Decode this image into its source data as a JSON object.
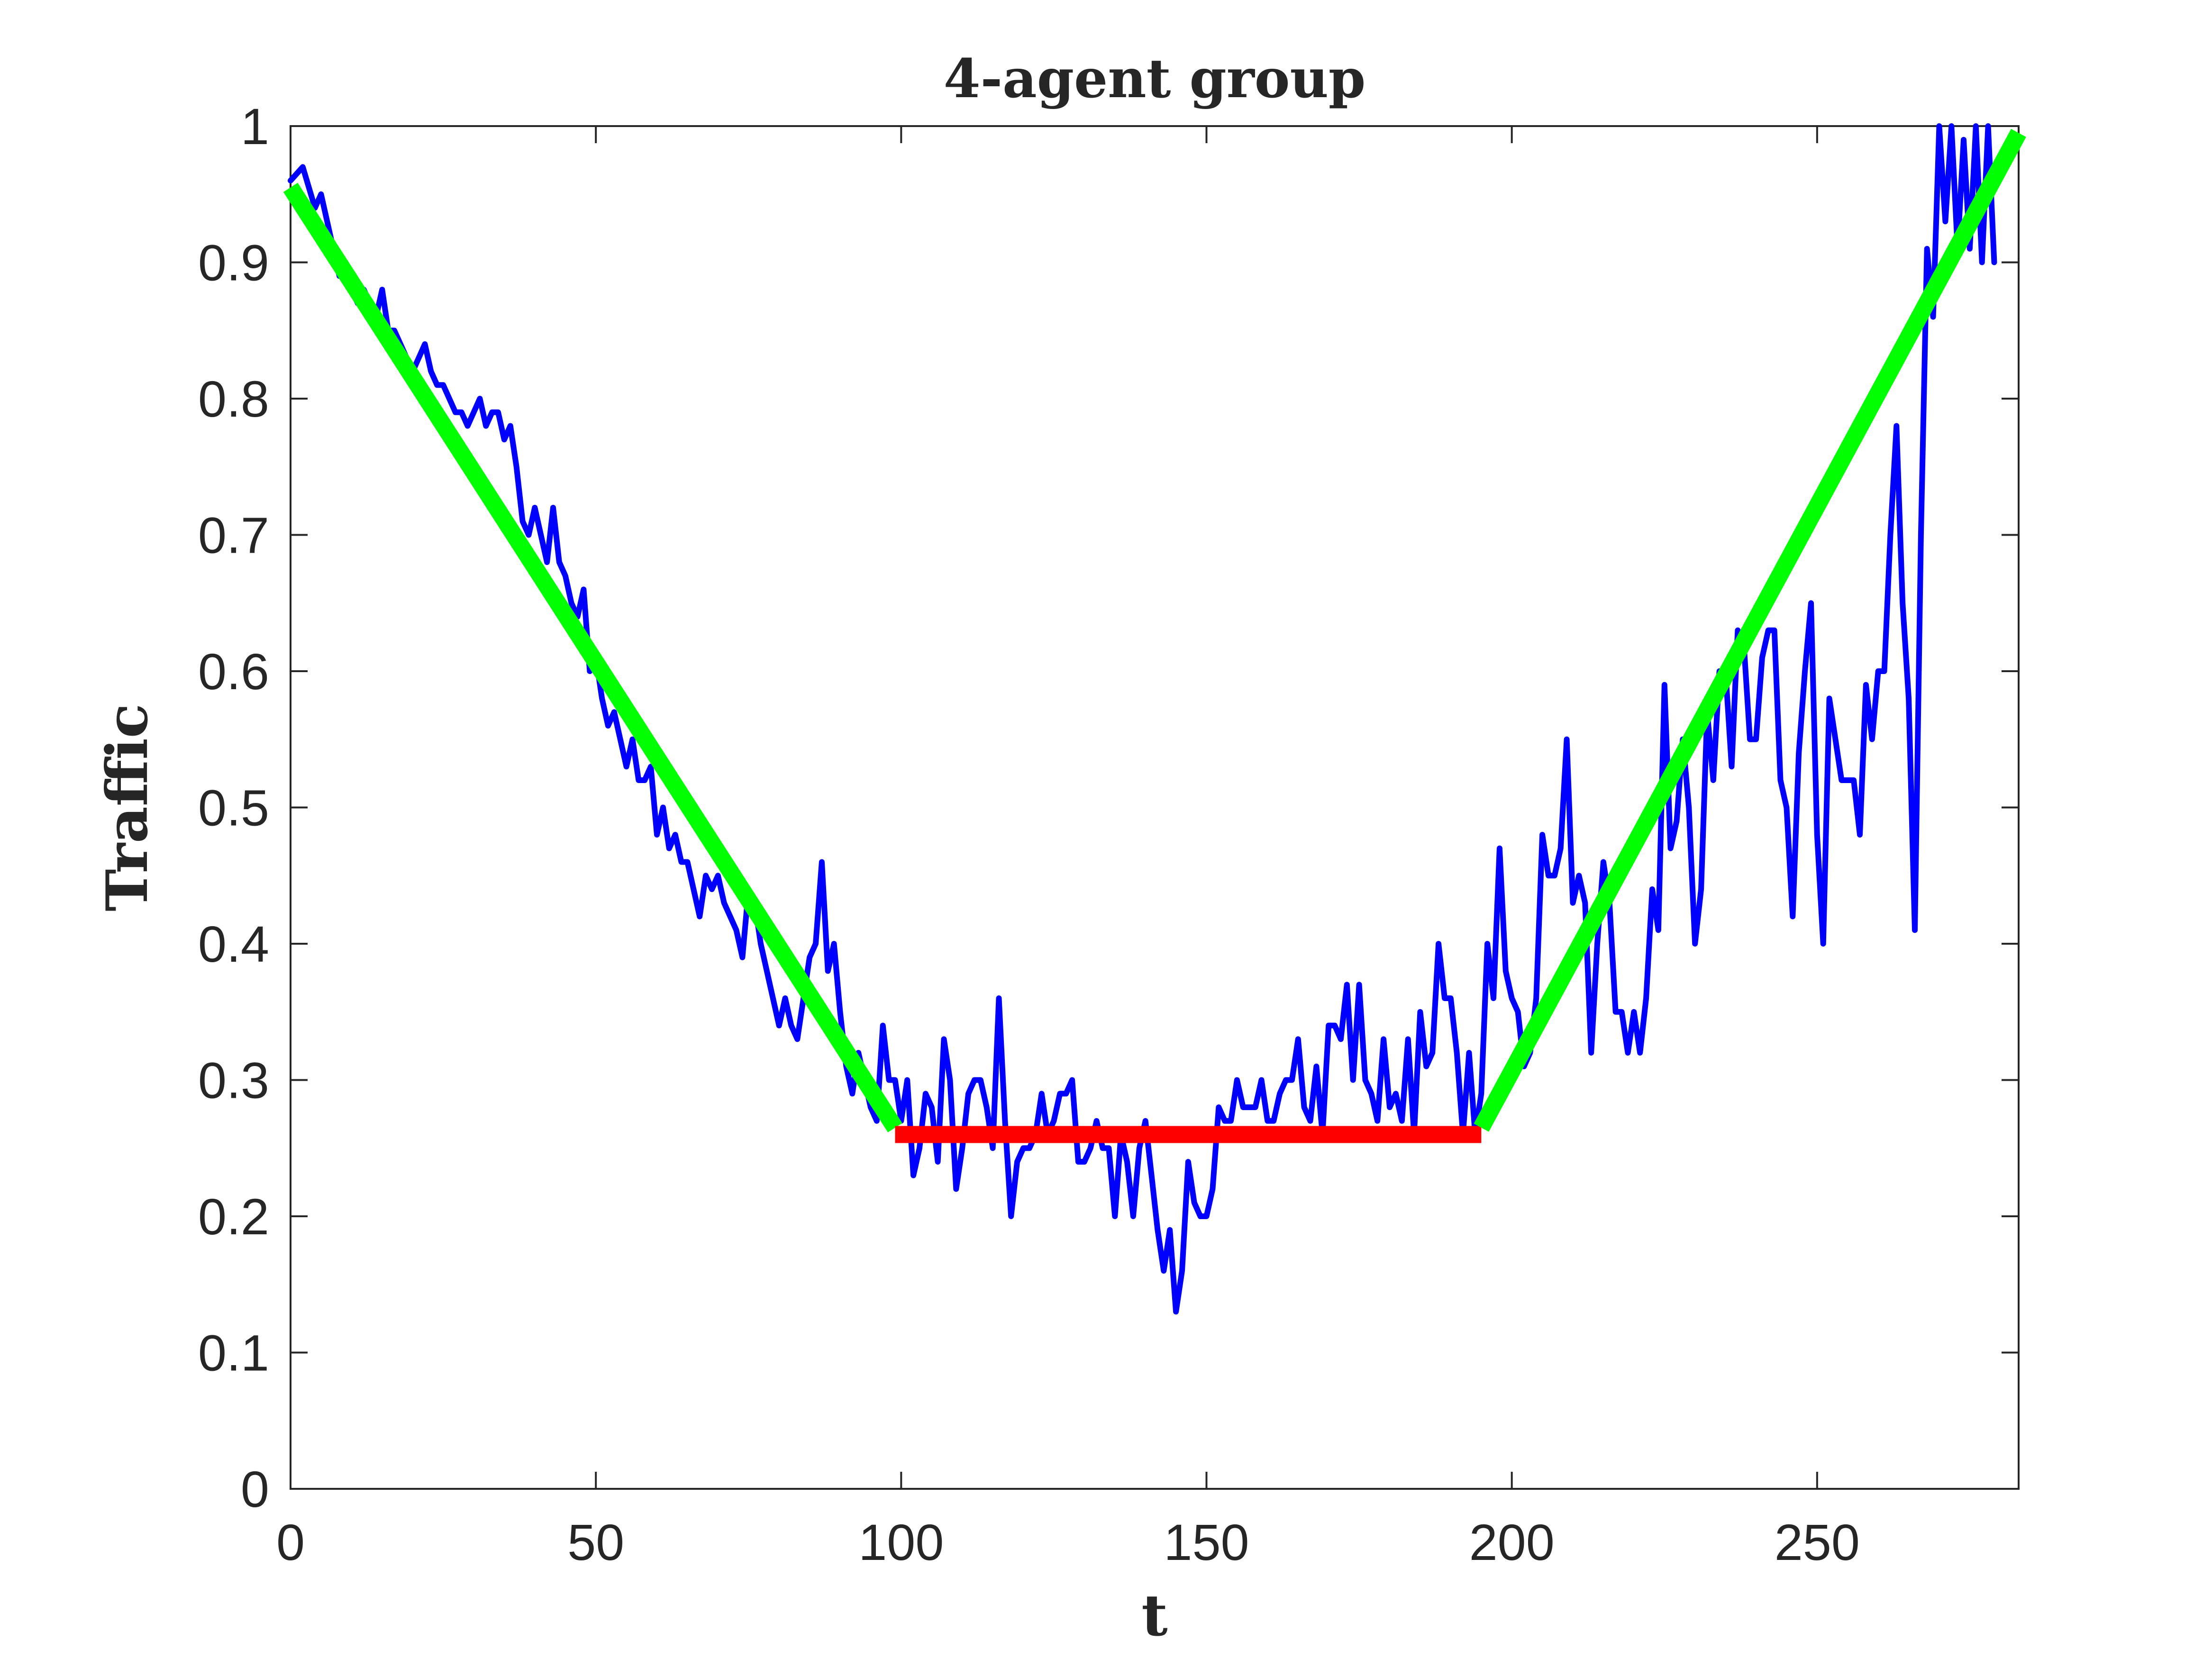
{
  "chart_data": {
    "type": "line",
    "title": "4-agent group",
    "xlabel": "t",
    "ylabel": "Traffic",
    "xlim": [
      0,
      283
    ],
    "ylim": [
      0,
      1
    ],
    "xticks": [
      0,
      50,
      100,
      150,
      200,
      250
    ],
    "yticks": [
      0,
      0.1,
      0.2,
      0.3,
      0.4,
      0.5,
      0.6,
      0.7,
      0.8,
      0.9,
      1
    ],
    "xtick_labels": [
      "0",
      "50",
      "100",
      "150",
      "200",
      "250"
    ],
    "ytick_labels": [
      "0",
      "0.1",
      "0.2",
      "0.3",
      "0.4",
      "0.5",
      "0.6",
      "0.7",
      "0.8",
      "0.9",
      "1"
    ],
    "grid": false,
    "series": [
      {
        "color": "#0000ff",
        "points": [
          [
            0,
            0.96
          ],
          [
            2,
            0.97
          ],
          [
            4,
            0.94
          ],
          [
            5,
            0.95
          ],
          [
            7,
            0.91
          ],
          [
            8,
            0.89
          ],
          [
            9,
            0.9
          ],
          [
            10,
            0.88
          ],
          [
            11,
            0.87
          ],
          [
            12,
            0.88
          ],
          [
            13,
            0.87
          ],
          [
            14,
            0.86
          ],
          [
            15,
            0.88
          ],
          [
            16,
            0.85
          ],
          [
            17,
            0.85
          ],
          [
            18,
            0.84
          ],
          [
            19,
            0.83
          ],
          [
            20,
            0.82
          ],
          [
            21,
            0.83
          ],
          [
            22,
            0.84
          ],
          [
            23,
            0.82
          ],
          [
            24,
            0.81
          ],
          [
            25,
            0.81
          ],
          [
            26,
            0.8
          ],
          [
            27,
            0.79
          ],
          [
            28,
            0.79
          ],
          [
            29,
            0.78
          ],
          [
            30,
            0.79
          ],
          [
            31,
            0.8
          ],
          [
            32,
            0.78
          ],
          [
            33,
            0.79
          ],
          [
            34,
            0.79
          ],
          [
            35,
            0.77
          ],
          [
            36,
            0.78
          ],
          [
            37,
            0.75
          ],
          [
            38,
            0.71
          ],
          [
            39,
            0.7
          ],
          [
            40,
            0.72
          ],
          [
            41,
            0.7
          ],
          [
            42,
            0.68
          ],
          [
            43,
            0.72
          ],
          [
            44,
            0.68
          ],
          [
            45,
            0.67
          ],
          [
            46,
            0.65
          ],
          [
            47,
            0.64
          ],
          [
            48,
            0.66
          ],
          [
            49,
            0.6
          ],
          [
            50,
            0.61
          ],
          [
            51,
            0.58
          ],
          [
            52,
            0.56
          ],
          [
            53,
            0.57
          ],
          [
            54,
            0.55
          ],
          [
            55,
            0.53
          ],
          [
            56,
            0.55
          ],
          [
            57,
            0.52
          ],
          [
            58,
            0.52
          ],
          [
            59,
            0.53
          ],
          [
            60,
            0.48
          ],
          [
            61,
            0.5
          ],
          [
            62,
            0.47
          ],
          [
            63,
            0.48
          ],
          [
            64,
            0.46
          ],
          [
            65,
            0.46
          ],
          [
            66,
            0.44
          ],
          [
            67,
            0.42
          ],
          [
            68,
            0.45
          ],
          [
            69,
            0.44
          ],
          [
            70,
            0.45
          ],
          [
            71,
            0.43
          ],
          [
            72,
            0.42
          ],
          [
            73,
            0.41
          ],
          [
            74,
            0.39
          ],
          [
            75,
            0.44
          ],
          [
            76,
            0.43
          ],
          [
            77,
            0.4
          ],
          [
            78,
            0.38
          ],
          [
            79,
            0.36
          ],
          [
            80,
            0.34
          ],
          [
            81,
            0.36
          ],
          [
            82,
            0.34
          ],
          [
            83,
            0.33
          ],
          [
            84,
            0.36
          ],
          [
            85,
            0.39
          ],
          [
            86,
            0.4
          ],
          [
            87,
            0.46
          ],
          [
            88,
            0.38
          ],
          [
            89,
            0.4
          ],
          [
            90,
            0.35
          ],
          [
            91,
            0.31
          ],
          [
            92,
            0.29
          ],
          [
            93,
            0.32
          ],
          [
            94,
            0.3
          ],
          [
            95,
            0.28
          ],
          [
            96,
            0.27
          ],
          [
            97,
            0.34
          ],
          [
            98,
            0.3
          ],
          [
            99,
            0.3
          ],
          [
            100,
            0.27
          ],
          [
            101,
            0.3
          ],
          [
            102,
            0.23
          ],
          [
            103,
            0.25
          ],
          [
            104,
            0.29
          ],
          [
            105,
            0.28
          ],
          [
            106,
            0.24
          ],
          [
            107,
            0.33
          ],
          [
            108,
            0.3
          ],
          [
            109,
            0.22
          ],
          [
            110,
            0.25
          ],
          [
            111,
            0.29
          ],
          [
            112,
            0.3
          ],
          [
            113,
            0.3
          ],
          [
            114,
            0.28
          ],
          [
            115,
            0.25
          ],
          [
            116,
            0.36
          ],
          [
            117,
            0.27
          ],
          [
            118,
            0.2
          ],
          [
            119,
            0.24
          ],
          [
            120,
            0.25
          ],
          [
            121,
            0.25
          ],
          [
            122,
            0.26
          ],
          [
            123,
            0.29
          ],
          [
            124,
            0.26
          ],
          [
            125,
            0.27
          ],
          [
            126,
            0.29
          ],
          [
            127,
            0.29
          ],
          [
            128,
            0.3
          ],
          [
            129,
            0.24
          ],
          [
            130,
            0.24
          ],
          [
            131,
            0.25
          ],
          [
            132,
            0.27
          ],
          [
            133,
            0.25
          ],
          [
            134,
            0.25
          ],
          [
            135,
            0.2
          ],
          [
            136,
            0.26
          ],
          [
            137,
            0.24
          ],
          [
            138,
            0.2
          ],
          [
            139,
            0.25
          ],
          [
            140,
            0.27
          ],
          [
            141,
            0.23
          ],
          [
            142,
            0.19
          ],
          [
            143,
            0.16
          ],
          [
            144,
            0.19
          ],
          [
            145,
            0.13
          ],
          [
            146,
            0.16
          ],
          [
            147,
            0.24
          ],
          [
            148,
            0.21
          ],
          [
            149,
            0.2
          ],
          [
            150,
            0.2
          ],
          [
            151,
            0.22
          ],
          [
            152,
            0.28
          ],
          [
            153,
            0.27
          ],
          [
            154,
            0.27
          ],
          [
            155,
            0.3
          ],
          [
            156,
            0.28
          ],
          [
            157,
            0.28
          ],
          [
            158,
            0.28
          ],
          [
            159,
            0.3
          ],
          [
            160,
            0.27
          ],
          [
            161,
            0.27
          ],
          [
            162,
            0.29
          ],
          [
            163,
            0.3
          ],
          [
            164,
            0.3
          ],
          [
            165,
            0.33
          ],
          [
            166,
            0.28
          ],
          [
            167,
            0.27
          ],
          [
            168,
            0.31
          ],
          [
            169,
            0.26
          ],
          [
            170,
            0.34
          ],
          [
            171,
            0.34
          ],
          [
            172,
            0.33
          ],
          [
            173,
            0.37
          ],
          [
            174,
            0.3
          ],
          [
            175,
            0.37
          ],
          [
            176,
            0.3
          ],
          [
            177,
            0.29
          ],
          [
            178,
            0.27
          ],
          [
            179,
            0.33
          ],
          [
            180,
            0.28
          ],
          [
            181,
            0.29
          ],
          [
            182,
            0.27
          ],
          [
            183,
            0.33
          ],
          [
            184,
            0.26
          ],
          [
            185,
            0.35
          ],
          [
            186,
            0.31
          ],
          [
            187,
            0.32
          ],
          [
            188,
            0.4
          ],
          [
            189,
            0.36
          ],
          [
            190,
            0.36
          ],
          [
            191,
            0.32
          ],
          [
            192,
            0.26
          ],
          [
            193,
            0.32
          ],
          [
            194,
            0.26
          ],
          [
            195,
            0.29
          ],
          [
            196,
            0.4
          ],
          [
            197,
            0.36
          ],
          [
            198,
            0.47
          ],
          [
            199,
            0.38
          ],
          [
            200,
            0.36
          ],
          [
            201,
            0.35
          ],
          [
            202,
            0.31
          ],
          [
            203,
            0.32
          ],
          [
            204,
            0.36
          ],
          [
            205,
            0.48
          ],
          [
            206,
            0.45
          ],
          [
            207,
            0.45
          ],
          [
            208,
            0.47
          ],
          [
            209,
            0.55
          ],
          [
            210,
            0.43
          ],
          [
            211,
            0.45
          ],
          [
            212,
            0.43
          ],
          [
            213,
            0.32
          ],
          [
            214,
            0.4
          ],
          [
            215,
            0.46
          ],
          [
            216,
            0.43
          ],
          [
            217,
            0.35
          ],
          [
            218,
            0.35
          ],
          [
            219,
            0.32
          ],
          [
            220,
            0.35
          ],
          [
            221,
            0.32
          ],
          [
            222,
            0.36
          ],
          [
            223,
            0.44
          ],
          [
            224,
            0.41
          ],
          [
            225,
            0.59
          ],
          [
            226,
            0.47
          ],
          [
            227,
            0.49
          ],
          [
            228,
            0.55
          ],
          [
            229,
            0.5
          ],
          [
            230,
            0.4
          ],
          [
            231,
            0.44
          ],
          [
            232,
            0.57
          ],
          [
            233,
            0.52
          ],
          [
            234,
            0.6
          ],
          [
            235,
            0.6
          ],
          [
            236,
            0.53
          ],
          [
            237,
            0.63
          ],
          [
            238,
            0.62
          ],
          [
            239,
            0.55
          ],
          [
            240,
            0.55
          ],
          [
            241,
            0.61
          ],
          [
            242,
            0.63
          ],
          [
            243,
            0.63
          ],
          [
            244,
            0.52
          ],
          [
            245,
            0.5
          ],
          [
            246,
            0.42
          ],
          [
            247,
            0.54
          ],
          [
            248,
            0.6
          ],
          [
            249,
            0.65
          ],
          [
            250,
            0.48
          ],
          [
            251,
            0.4
          ],
          [
            252,
            0.58
          ],
          [
            253,
            0.55
          ],
          [
            254,
            0.52
          ],
          [
            255,
            0.52
          ],
          [
            256,
            0.52
          ],
          [
            257,
            0.48
          ],
          [
            258,
            0.59
          ],
          [
            259,
            0.55
          ],
          [
            260,
            0.6
          ],
          [
            261,
            0.6
          ],
          [
            262,
            0.7
          ],
          [
            263,
            0.78
          ],
          [
            264,
            0.65
          ],
          [
            265,
            0.58
          ],
          [
            266,
            0.41
          ],
          [
            267,
            0.7
          ],
          [
            268,
            0.91
          ],
          [
            269,
            0.86
          ],
          [
            270,
            1.0
          ],
          [
            271,
            0.93
          ],
          [
            272,
            1.0
          ],
          [
            273,
            0.91
          ],
          [
            274,
            0.99
          ],
          [
            275,
            0.91
          ],
          [
            276,
            1.0
          ],
          [
            277,
            0.9
          ],
          [
            278,
            1.0
          ],
          [
            279,
            0.9
          ]
        ]
      },
      {
        "color": "#00ff00",
        "points": [
          [
            0,
            0.955
          ],
          [
            99,
            0.265
          ]
        ]
      },
      {
        "color": "#ff0000",
        "points": [
          [
            99,
            0.26
          ],
          [
            195,
            0.26
          ]
        ]
      },
      {
        "color": "#00ff00",
        "points": [
          [
            195,
            0.265
          ],
          [
            283,
            0.995
          ]
        ]
      }
    ]
  }
}
